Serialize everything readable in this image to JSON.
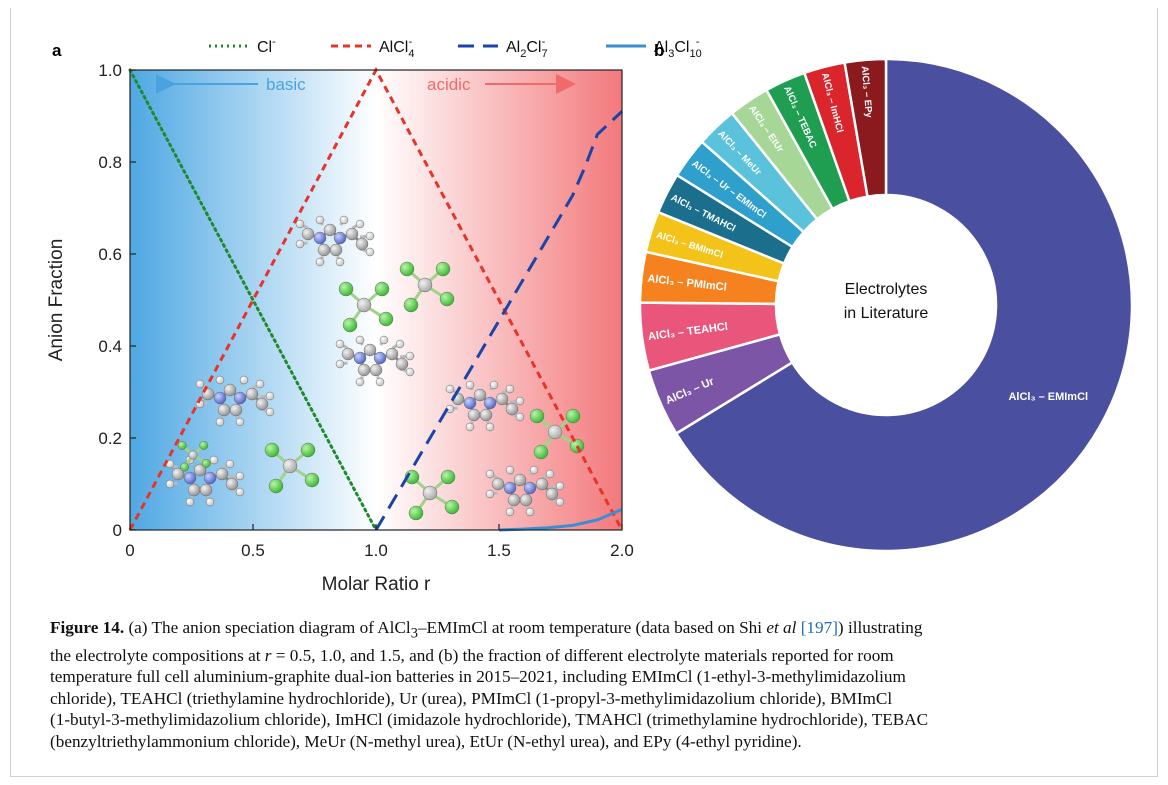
{
  "chart_data": [
    {
      "panel": "a",
      "type": "line",
      "xlabel": "Molar Ratio r",
      "ylabel": "Anion Fraction",
      "xlim": [
        0,
        2.0
      ],
      "ylim": [
        0,
        1.0
      ],
      "xticks": [
        "0",
        "0.5",
        "1.0",
        "1.5",
        "2.0"
      ],
      "yticks": [
        "0",
        "0.2",
        "0.4",
        "0.6",
        "0.8",
        "1.0"
      ],
      "legend_position": "top",
      "regions": [
        {
          "label": "basic",
          "x_range": [
            0,
            1.0
          ],
          "color": "#4aa3e0"
        },
        {
          "label": "acidic",
          "x_range": [
            1.0,
            2.0
          ],
          "color": "#f07070"
        }
      ],
      "series": [
        {
          "name": "Cl",
          "sup": "-",
          "sub": "",
          "color": "#1e8a2b",
          "style": "dotted",
          "points": [
            [
              0,
              1.0
            ],
            [
              1.0,
              0
            ]
          ]
        },
        {
          "name": "AlCl",
          "sub": "4",
          "sup": "-",
          "color": "#e8332a",
          "style": "dashed",
          "points": [
            [
              0,
              0
            ],
            [
              1.0,
              1.0
            ],
            [
              2.0,
              0
            ]
          ]
        },
        {
          "name": "Al",
          "sub": "2",
          "name2": "Cl",
          "sub2": "7",
          "sup": "-",
          "color": "#1a45a8",
          "style": "longdash",
          "points": [
            [
              1.0,
              0
            ],
            [
              1.1,
              0.091
            ],
            [
              1.2,
              0.182
            ],
            [
              1.3,
              0.273
            ],
            [
              1.4,
              0.364
            ],
            [
              1.5,
              0.455
            ],
            [
              1.6,
              0.546
            ],
            [
              1.7,
              0.637
            ],
            [
              1.8,
              0.728
            ],
            [
              1.85,
              0.79
            ],
            [
              1.9,
              0.86
            ],
            [
              2.0,
              0.91
            ]
          ]
        },
        {
          "name": "Al",
          "sub": "3",
          "name2": "Cl",
          "sub2": "10",
          "sup": "-",
          "color": "#3a8fd0",
          "style": "solid",
          "points": [
            [
              1.5,
              0
            ],
            [
              1.6,
              0.002
            ],
            [
              1.7,
              0.005
            ],
            [
              1.8,
              0.01
            ],
            [
              1.9,
              0.022
            ],
            [
              2.0,
              0.045
            ]
          ]
        }
      ]
    },
    {
      "panel": "b",
      "type": "pie",
      "center_label_lines": [
        "Electrolytes",
        "in Literature"
      ],
      "slices": [
        {
          "label": "AlCl₃ – EMImCl",
          "value": 64.0,
          "color": "#4a4f9f"
        },
        {
          "label": "AlCl₃ – Ur",
          "value": 4.3,
          "color": "#7d55a7"
        },
        {
          "label": "AlCl₃ – TEAHCl",
          "value": 4.3,
          "color": "#e9557b"
        },
        {
          "label": "AlCl₃ – PMImCl",
          "value": 3.2,
          "color": "#f5821f"
        },
        {
          "label": "AlCl₃ – BMImCl",
          "value": 2.6,
          "color": "#f4c31a"
        },
        {
          "label": "AlCl₃ – TMAHCl",
          "value": 2.6,
          "color": "#1b6f8c"
        },
        {
          "label": "AlCl₃ – Ur – EMImCl",
          "value": 2.6,
          "color": "#2f9fcc"
        },
        {
          "label": "AlCl₃ – MeUr",
          "value": 2.6,
          "color": "#5bc2dc"
        },
        {
          "label": "AlCl₃ – EtUr",
          "value": 2.6,
          "color": "#a7d797"
        },
        {
          "label": "AlCl₃ – TEBAC",
          "value": 2.6,
          "color": "#1f9e52"
        },
        {
          "label": "AlCl₃ – ImHCl",
          "value": 2.6,
          "color": "#d9252b"
        },
        {
          "label": "AlCl₃ – EPy",
          "value": 2.6,
          "color": "#8b1a1e"
        }
      ]
    }
  ],
  "caption": {
    "label": "Figure 14.",
    "line1_a": "(a) The anion speciation diagram of AlCl",
    "line1_sub": "3",
    "line1_b": "–EMImCl at room temperature (data based on Shi ",
    "line1_em": "et al",
    "line1_ref": "[197]",
    "line1_c": ") illustrating",
    "line2_a": "the electrolyte compositions at ",
    "line2_var": "r",
    "line2_b": " = 0.5, 1.0, and 1.5, and (b) the fraction of different electrolyte materials reported for room",
    "line3": "temperature full cell aluminium-graphite dual-ion batteries in 2015–2021, including EMImCl (1-ethyl-3-methylimidazolium",
    "line4": "chloride), TEAHCl (triethylamine hydrochloride), Ur (urea), PMImCl (1-propyl-3-methylimidazolium chloride), BMImCl",
    "line5": "(1-butyl-3-methylimidazolium chloride), ImHCl (imidazole hydrochloride), TMAHCl (trimethylamine hydrochloride), TEBAC",
    "line6": "(benzyltriethylammonium chloride), MeUr (N-methyl urea), EtUr (N-ethyl urea), and EPy (4-ethyl pyridine)."
  }
}
